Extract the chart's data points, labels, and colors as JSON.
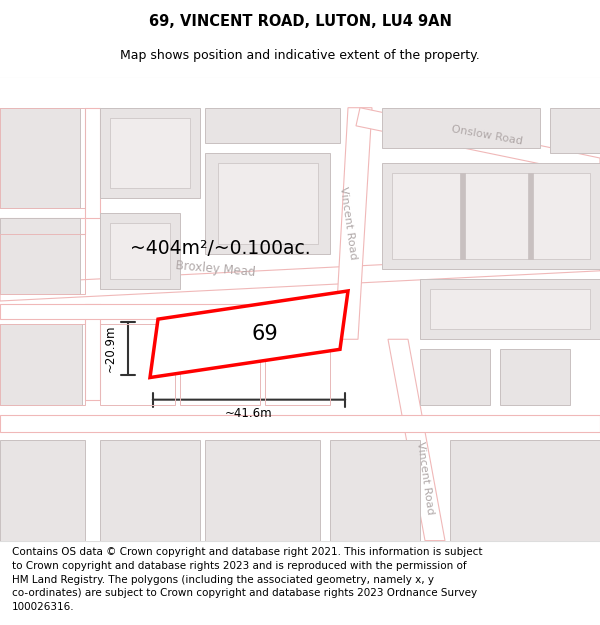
{
  "title": "69, VINCENT ROAD, LUTON, LU4 9AN",
  "subtitle": "Map shows position and indicative extent of the property.",
  "footer": "Contains OS data © Crown copyright and database right 2021. This information is subject\nto Crown copyright and database rights 2023 and is reproduced with the permission of\nHM Land Registry. The polygons (including the associated geometry, namely x, y\nco-ordinates) are subject to Crown copyright and database rights 2023 Ordnance Survey\n100026316.",
  "area_text": "~404m²/~0.100ac.",
  "number_text": "69",
  "width_label": "~41.6m",
  "height_label": "~20.9m",
  "highlight_color": "#ff0000",
  "dim_color": "#333333",
  "road_color": "#ffffff",
  "road_border_color": "#f0b8b8",
  "building_fill": "#e8e4e4",
  "building_stroke": "#c8c0c0",
  "plot_outline": "#e8b8b8",
  "map_bg": "#f7f2f2",
  "title_fontsize": 10.5,
  "subtitle_fontsize": 9,
  "footer_fontsize": 7.5,
  "street_label_color": "#b0a8a8",
  "street_label_size": 8.5
}
